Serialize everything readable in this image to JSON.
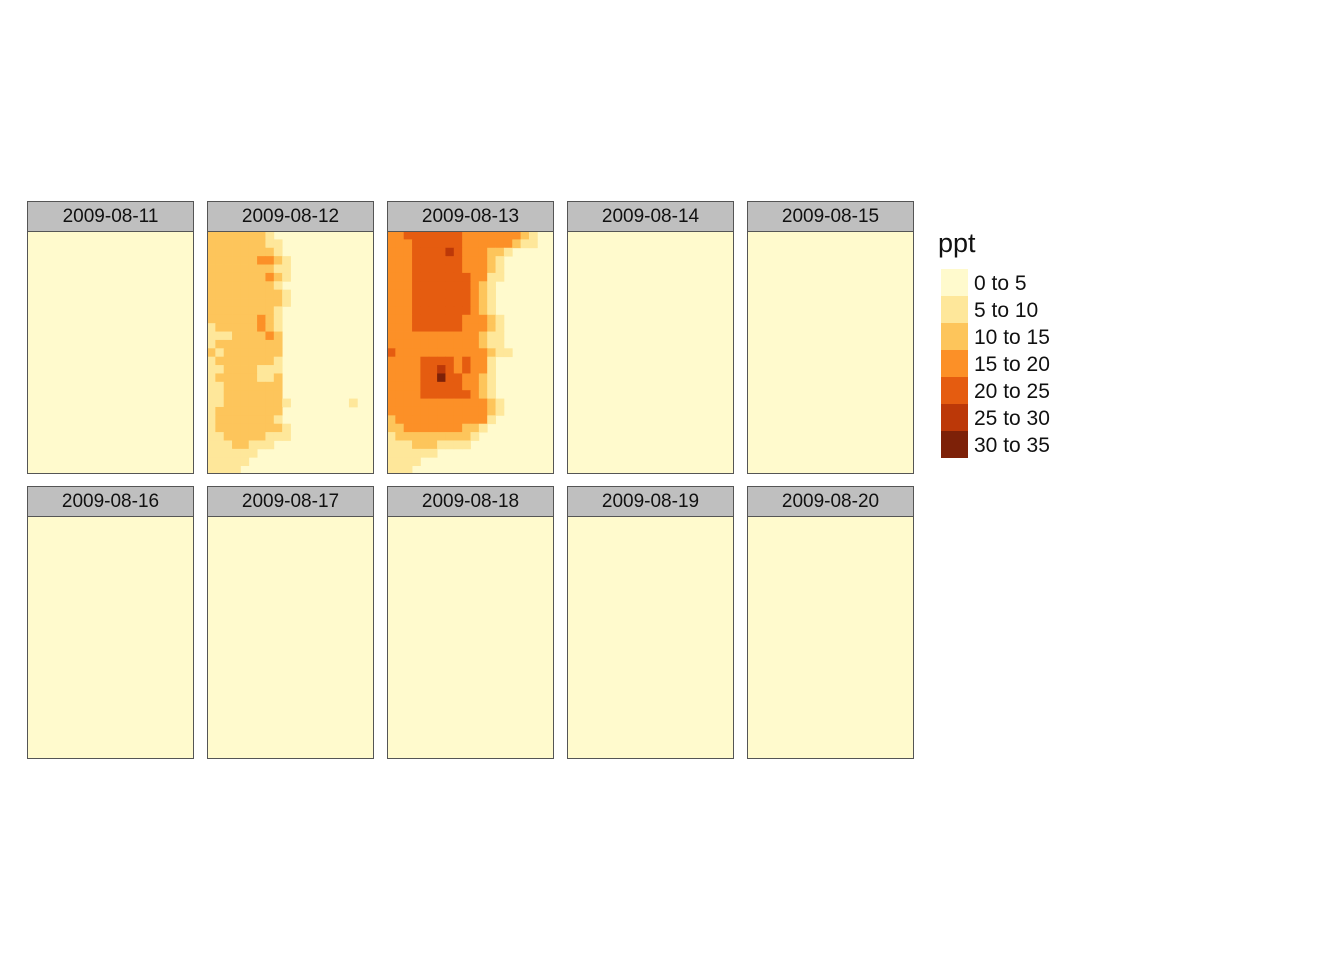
{
  "chart_data": {
    "type": "heatmap",
    "legend": {
      "title": "ppt",
      "position": "right",
      "classes": [
        {
          "label": "0 to 5",
          "color": "#FFFACD"
        },
        {
          "label": "5 to 10",
          "color": "#FEE79A"
        },
        {
          "label": "10 to 15",
          "color": "#FDC55B"
        },
        {
          "label": "15 to 20",
          "color": "#FC9027"
        },
        {
          "label": "20 to 25",
          "color": "#E55C10"
        },
        {
          "label": "25 to 30",
          "color": "#BC3808"
        },
        {
          "label": "30 to 35",
          "color": "#7D2108"
        }
      ]
    },
    "grid": {
      "cols": 20,
      "rows": 29
    },
    "panels": [
      {
        "date": "2009-08-11",
        "rows": []
      },
      {
        "date": "2009-08-12",
        "rows": [
          "22222221000000000000",
          "22222221100000000000",
          "22222222100000000000",
          "22222233210000000000",
          "22222222110000000000",
          "22222223210000000000",
          "22222222100000000000",
          "22222222210000000000",
          "22222222210000000000",
          "22222222100000000000",
          "22222232100000000000",
          "12222232100000000000",
          "11122223200000000000",
          "12222222200000000000",
          "21222222200000000000",
          "12222222100000000000",
          "11222211100000000000",
          "12222211200000000000",
          "11222222200000000000",
          "11222222200000000000",
          "11222222210000000100",
          "12222222200000000000",
          "12222222100000000000",
          "12222222210000000000",
          "11222221110000000000",
          "11122111000000000000",
          "11111100000000000000",
          "11111000000000000000",
          "11110000000000000000"
        ]
      },
      {
        "date": "2009-08-13",
        "rows": [
          "33444444433333332100",
          "33344444433333321100",
          "33344445433322100000",
          "33344444433321000000",
          "33344444433321000000",
          "33344444443311000000",
          "33344444443210000000",
          "33344444443210000000",
          "33344444443210000000",
          "33344444443210000000",
          "33344444433321000000",
          "33344444433321000000",
          "33333333333211000000",
          "33333333333211000000",
          "43333333333321100000",
          "33334444343310000000",
          "33334454343310000000",
          "33334464433210000000",
          "33334444433210000000",
          "33334444443210000000",
          "33333333333321000000",
          "33333333333321000000",
          "23333333333310000000",
          "22333333322100000000",
          "12222222221000000000",
          "11122211110000000000",
          "11111100000000000000",
          "11110000000000000000",
          "11100000000000000000"
        ]
      },
      {
        "date": "2009-08-14",
        "rows": []
      },
      {
        "date": "2009-08-15",
        "rows": []
      },
      {
        "date": "2009-08-16",
        "rows": []
      },
      {
        "date": "2009-08-17",
        "rows": []
      },
      {
        "date": "2009-08-18",
        "rows": []
      },
      {
        "date": "2009-08-19",
        "rows": []
      },
      {
        "date": "2009-08-20",
        "rows": []
      }
    ]
  }
}
